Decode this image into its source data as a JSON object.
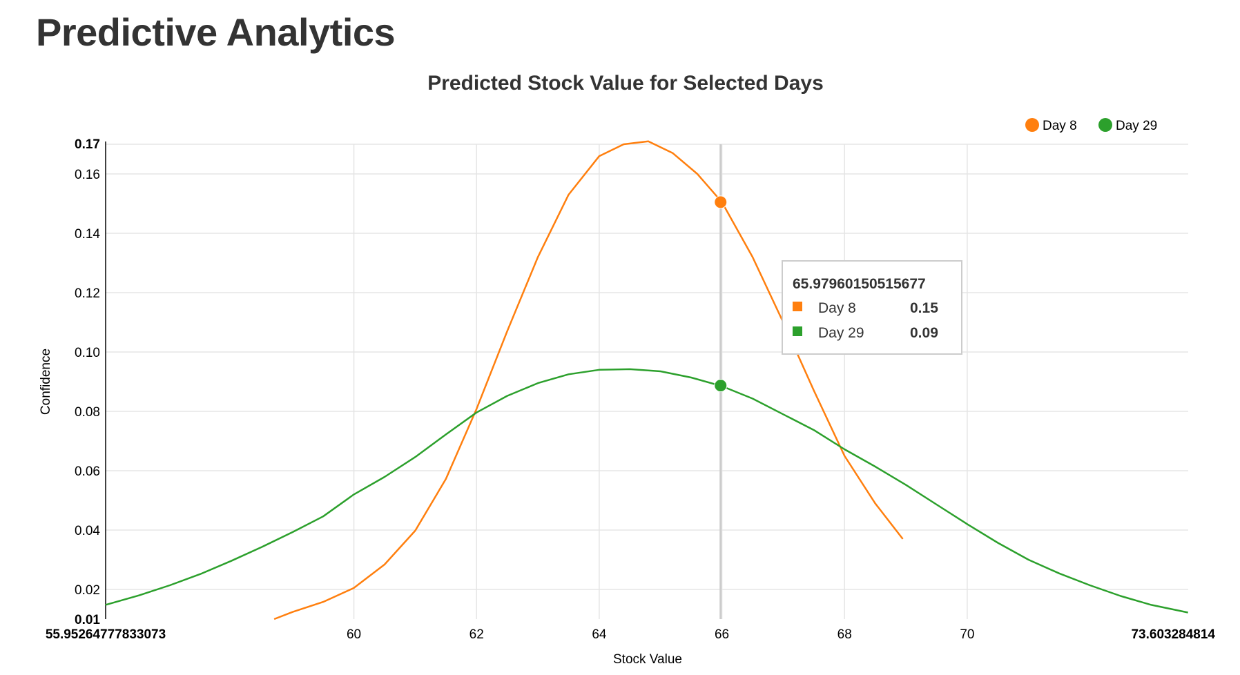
{
  "page": {
    "title": "Predictive Analytics"
  },
  "chart_data": {
    "type": "line",
    "title": "Predicted Stock Value for Selected Days",
    "xlabel": "Stock Value",
    "ylabel": "Confidence",
    "xlim": [
      55.95264777833073,
      73.603284814
    ],
    "ylim": [
      0.01,
      0.17
    ],
    "x_ticks": [
      60,
      62,
      64,
      66,
      68,
      70
    ],
    "x_range_labels": [
      "55.95264777833073",
      "73.603284814"
    ],
    "y_ticks": [
      0.02,
      0.04,
      0.06,
      0.08,
      0.1,
      0.12,
      0.14,
      0.16
    ],
    "y_range_labels": [
      "0.01",
      "0.17"
    ],
    "grid": true,
    "legend_position": "top-right",
    "series": [
      {
        "name": "Day 8",
        "color": "#ff7f0e",
        "x": [
          58.7,
          59.0,
          59.5,
          60.0,
          60.5,
          61.0,
          61.5,
          62.0,
          62.5,
          63.0,
          63.5,
          64.0,
          64.4,
          64.8,
          65.2,
          65.6,
          66.0,
          66.5,
          67.0,
          67.5,
          68.0,
          68.5,
          68.95
        ],
        "y": [
          0.01,
          0.0124,
          0.0158,
          0.0205,
          0.0284,
          0.0398,
          0.0572,
          0.0808,
          0.107,
          0.132,
          0.153,
          0.166,
          0.17,
          0.171,
          0.167,
          0.16,
          0.1505,
          0.132,
          0.11,
          0.087,
          0.065,
          0.049,
          0.037
        ]
      },
      {
        "name": "Day 29",
        "color": "#2ca02c",
        "x": [
          55.95,
          56.5,
          57.0,
          57.5,
          58.0,
          58.5,
          59.0,
          59.5,
          60.0,
          60.5,
          61.0,
          61.5,
          62.0,
          62.5,
          63.0,
          63.5,
          64.0,
          64.5,
          65.0,
          65.5,
          66.0,
          66.5,
          67.0,
          67.5,
          68.0,
          68.5,
          69.0,
          69.5,
          70.0,
          70.5,
          71.0,
          71.5,
          72.0,
          72.5,
          73.0,
          73.6
        ],
        "y": [
          0.0148,
          0.018,
          0.0214,
          0.0252,
          0.0296,
          0.0343,
          0.0393,
          0.0446,
          0.052,
          0.0579,
          0.0646,
          0.0722,
          0.0796,
          0.0852,
          0.0895,
          0.0925,
          0.094,
          0.0942,
          0.0935,
          0.0914,
          0.0885,
          0.0843,
          0.079,
          0.0737,
          0.0672,
          0.0614,
          0.0552,
          0.0486,
          0.042,
          0.0357,
          0.03,
          0.0254,
          0.0214,
          0.0178,
          0.0148,
          0.0122
        ]
      }
    ],
    "hover_line_x": 65.97960150515677,
    "hover_markers": [
      {
        "series": "Day 8",
        "x": 65.97960150515677,
        "y": 0.1505
      },
      {
        "series": "Day 29",
        "x": 65.97960150515677,
        "y": 0.0887
      }
    ],
    "tooltip": {
      "header": "65.97960150515677",
      "rows": [
        {
          "label": "Day 8",
          "value": "0.15",
          "color": "#ff7f0e"
        },
        {
          "label": "Day 29",
          "value": "0.09",
          "color": "#2ca02c"
        }
      ]
    }
  }
}
